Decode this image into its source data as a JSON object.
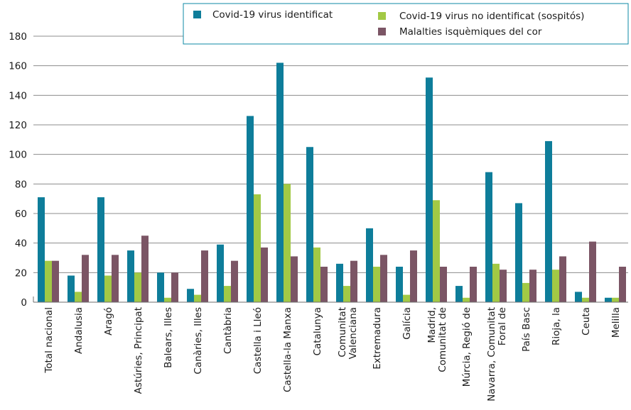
{
  "chart_data": {
    "type": "bar",
    "title": "",
    "xlabel": "",
    "ylabel": "",
    "ylim": [
      0,
      180
    ],
    "yticks": [
      0,
      20,
      40,
      60,
      80,
      100,
      120,
      140,
      160,
      180
    ],
    "grid": "horizontal",
    "legend_position": "top-right",
    "categories": [
      [
        "Total nacional"
      ],
      [
        "Andalusia"
      ],
      [
        "Aragó"
      ],
      [
        "Astúries, Principat"
      ],
      [
        "Balears, Illes"
      ],
      [
        "Canàries, Illes"
      ],
      [
        "Cantàbria"
      ],
      [
        "Castella i Lleó"
      ],
      [
        "Castella-la Manxa"
      ],
      [
        "Catalunya"
      ],
      [
        "Comunitat",
        "Valenciana"
      ],
      [
        "Extremadura"
      ],
      [
        "Galícia"
      ],
      [
        "Madrid,",
        "Comunitat de"
      ],
      [
        "Múrcia, Regió de"
      ],
      [
        "Navarra, Comunitat",
        "Foral de"
      ],
      [
        "País Basc"
      ],
      [
        "Rioja, la"
      ],
      [
        "Ceuta"
      ],
      [
        "Melilla"
      ]
    ],
    "series": [
      {
        "name": "Covid-19 virus identificat",
        "color": "#0e7d9a",
        "values": [
          71,
          18,
          71,
          35,
          20,
          9,
          39,
          126,
          162,
          105,
          26,
          50,
          24,
          152,
          11,
          88,
          67,
          109,
          7,
          3
        ]
      },
      {
        "name": "Covid-19 virus no identificat (sospitós)",
        "color": "#a2c945",
        "values": [
          28,
          7,
          18,
          20,
          3,
          5,
          11,
          73,
          80,
          37,
          11,
          24,
          5,
          69,
          3,
          26,
          13,
          22,
          3,
          3
        ]
      },
      {
        "name": "Malalties isquèmiques del cor",
        "color": "#7b5565",
        "values": [
          28,
          32,
          32,
          45,
          20,
          35,
          28,
          37,
          31,
          24,
          28,
          32,
          35,
          24,
          24,
          22,
          22,
          31,
          41,
          24
        ]
      }
    ]
  }
}
